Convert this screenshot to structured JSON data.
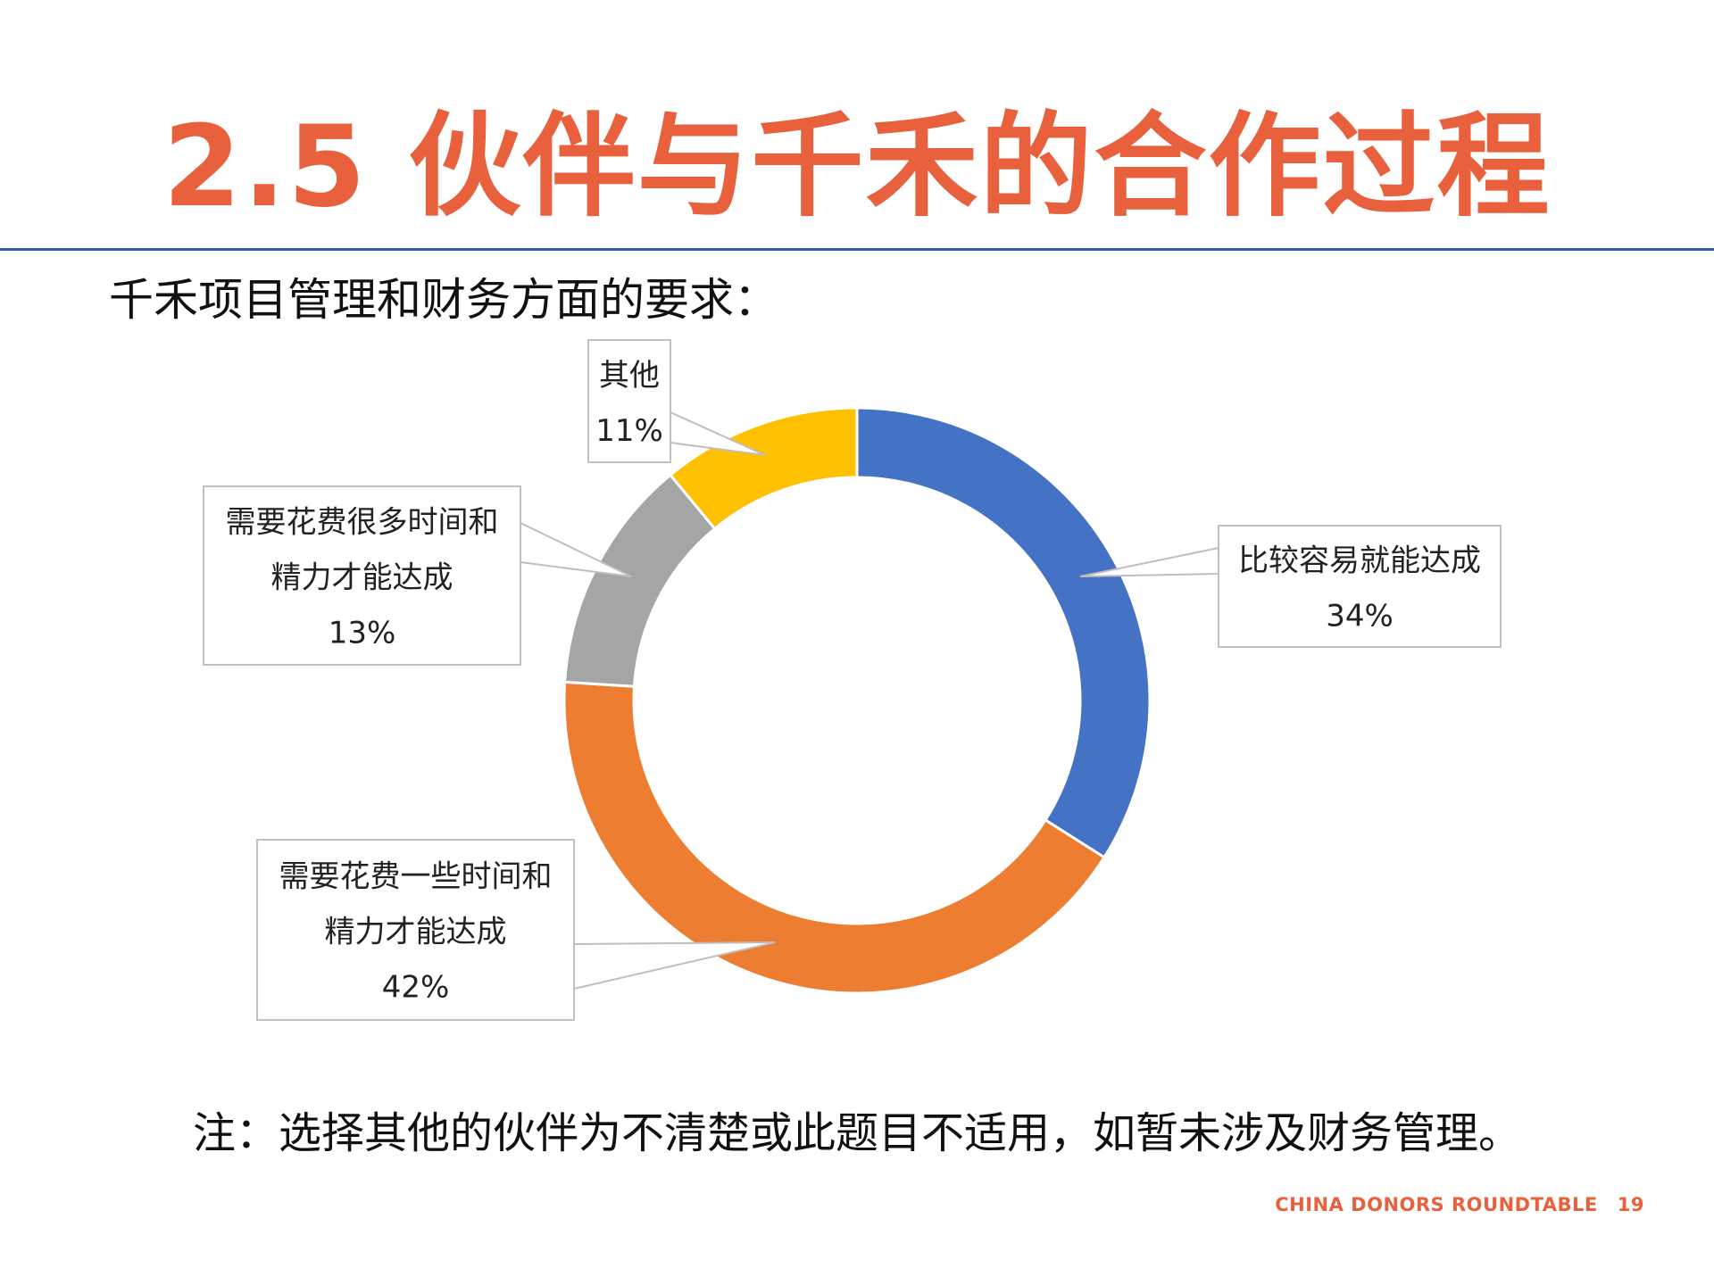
{
  "slide": {
    "title": "2.5 伙伴与千禾的合作过程",
    "heading": "千禾项目管理和财务方面的要求：",
    "note": "注：选择其他的伙伴为不清楚或此题目不适用，如暂未涉及财务管理。",
    "footer": {
      "org": "CHINA DONORS ROUNDTABLE",
      "page": "19"
    }
  },
  "colors": {
    "title": "#E8603C",
    "rule": "#2E5FA8"
  },
  "chart_data": {
    "type": "pie",
    "variant": "donut",
    "title": "",
    "start_angle_deg": 0,
    "direction": "clockwise",
    "slices": [
      {
        "label_lines": [
          "比较容易就能达成"
        ],
        "percent_label": "34%",
        "value": 34,
        "color": "#4472C4"
      },
      {
        "label_lines": [
          "需要花费一些时间和",
          "精力才能达成"
        ],
        "percent_label": "42%",
        "value": 42,
        "color": "#ED7D31"
      },
      {
        "label_lines": [
          "需要花费很多时间和",
          "精力才能达成"
        ],
        "percent_label": "13%",
        "value": 13,
        "color": "#A5A5A5"
      },
      {
        "label_lines": [
          "其他"
        ],
        "percent_label": "11%",
        "value": 11,
        "color": "#FFC000"
      }
    ]
  }
}
